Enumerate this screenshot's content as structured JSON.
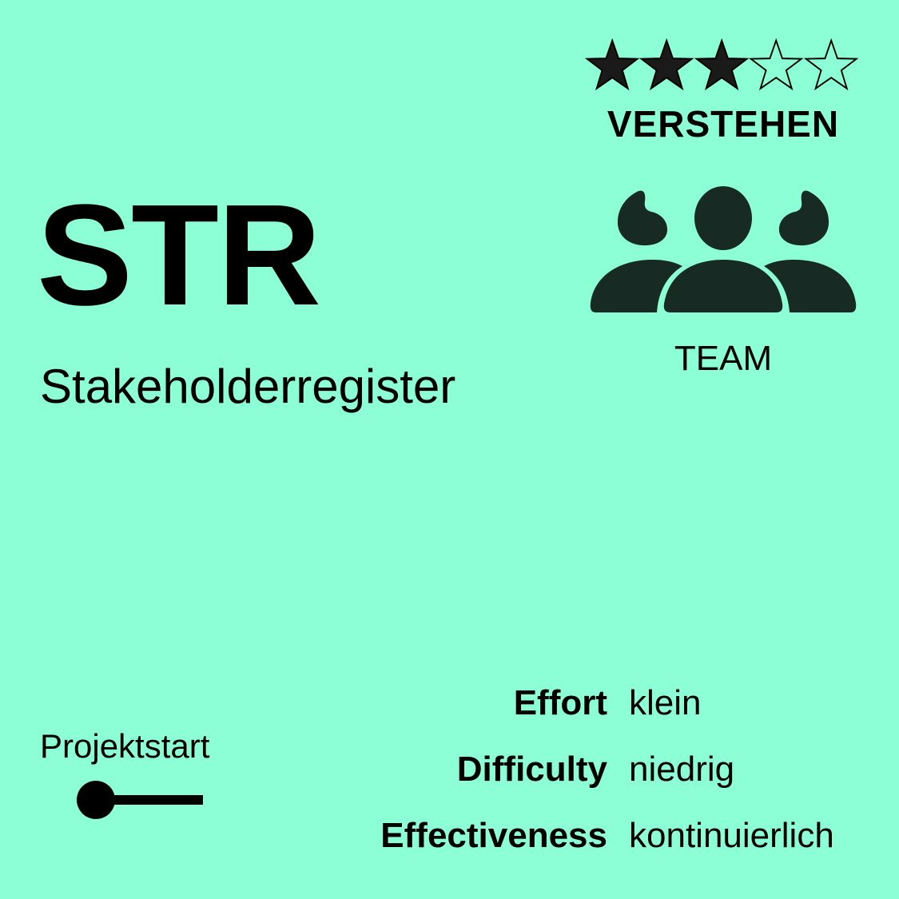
{
  "card": {
    "code": "STR",
    "name": "Stakeholderregister",
    "rating": {
      "value": 3,
      "max": 5
    },
    "level": "VERSTEHEN",
    "audience": {
      "icon": "team-icon",
      "label": "TEAM"
    },
    "phase": {
      "label": "Projektstart"
    },
    "metrics": [
      {
        "label": "Effort",
        "value": "klein"
      },
      {
        "label": "Difficulty",
        "value": "niedrig"
      },
      {
        "label": "Effectiveness",
        "value": "kontinuierlich"
      }
    ]
  },
  "colors": {
    "background": "#8dffd7",
    "icon": "#172b24",
    "text": "#000000"
  }
}
